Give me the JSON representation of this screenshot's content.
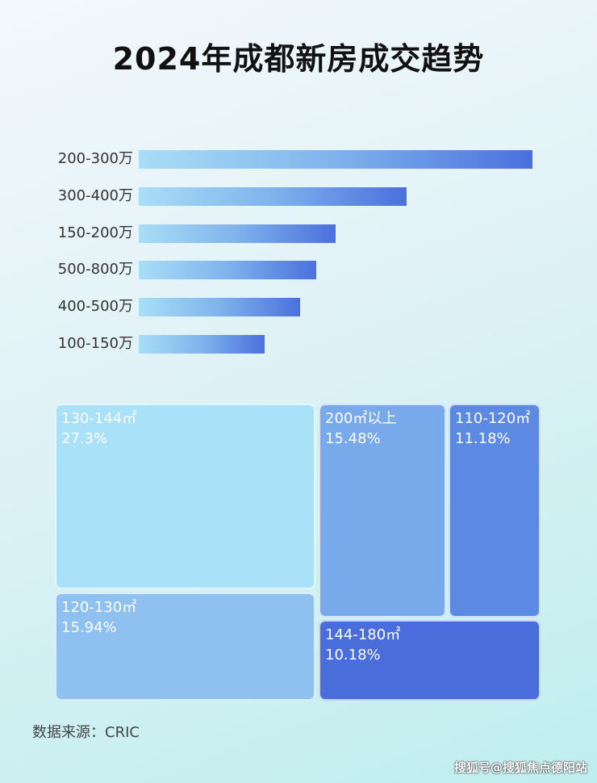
{
  "chart_data": [
    {
      "type": "bar",
      "orientation": "horizontal",
      "title": "2024年成都新房成交趋势",
      "categories": [
        "200-300万",
        "300-400万",
        "150-200万",
        "500-800万",
        "400-500万",
        "100-150万"
      ],
      "values": [
        100,
        68,
        50,
        45,
        41,
        32
      ],
      "bar_gradient": [
        "#a9def7",
        "#4b70de"
      ]
    },
    {
      "type": "treemap",
      "items": [
        {
          "label": "130-144㎡",
          "value": "27.3%",
          "color": "#a8e1f8"
        },
        {
          "label": "120-130㎡",
          "value": "15.94%",
          "color": "#8ec0f0"
        },
        {
          "label": "200㎡以上",
          "value": "15.48%",
          "color": "#78a9ea"
        },
        {
          "label": "110-120㎡",
          "value": "11.18%",
          "color": "#5c8ae2"
        },
        {
          "label": "144-180㎡",
          "value": "10.18%",
          "color": "#4a6ddc"
        }
      ]
    }
  ],
  "source": "数据来源：CRIC",
  "watermark": "搜狐号@搜狐焦点德阳站"
}
